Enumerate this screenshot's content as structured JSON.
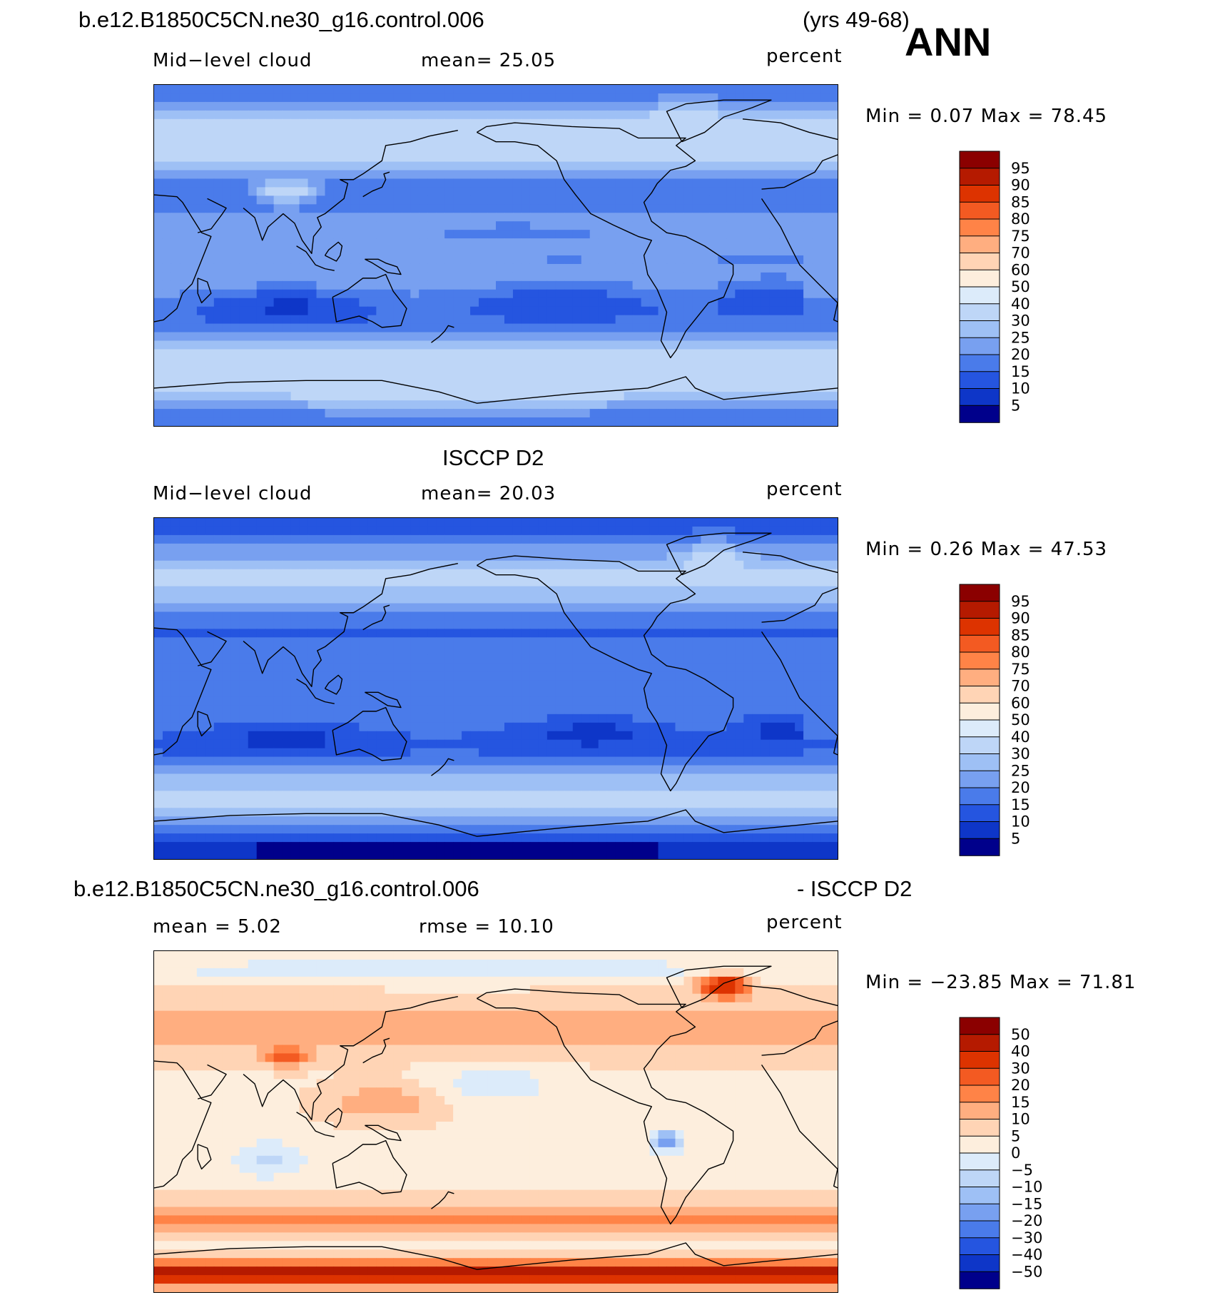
{
  "header": {
    "case_name": "b.e12.B1850C5CN.ne30_g16.control.006",
    "years": "(yrs 49-68)",
    "season": "ANN"
  },
  "panels": [
    {
      "title": "",
      "left_label": "Mid−level cloud",
      "center_label": "mean=   25.05",
      "right_label": "percent",
      "minmax": "Min =    0.07 Max =   78.45",
      "field": "model",
      "colorbar": {
        "levels": [
          "95",
          "90",
          "85",
          "80",
          "75",
          "70",
          "60",
          "50",
          "40",
          "30",
          "25",
          "20",
          "15",
          "10",
          "5"
        ],
        "colors": [
          "#8b0000",
          "#b51a00",
          "#dd3300",
          "#f35a22",
          "#ff8347",
          "#ffae80",
          "#ffd4b5",
          "#fdeedd",
          "#dcebfa",
          "#bed6f7",
          "#9ec0f5",
          "#78a0f0",
          "#4a7bea",
          "#2555e0",
          "#0e36c8",
          "#00008b"
        ]
      }
    },
    {
      "title": "ISCCP D2",
      "left_label": "Mid−level cloud",
      "center_label": "mean=   20.03",
      "right_label": "percent",
      "minmax": "Min =    0.26 Max =   47.53",
      "field": "obs",
      "colorbar": {
        "levels": [
          "95",
          "90",
          "85",
          "80",
          "75",
          "70",
          "60",
          "50",
          "40",
          "30",
          "25",
          "20",
          "15",
          "10",
          "5"
        ],
        "colors": [
          "#8b0000",
          "#b51a00",
          "#dd3300",
          "#f35a22",
          "#ff8347",
          "#ffae80",
          "#ffd4b5",
          "#fdeedd",
          "#dcebfa",
          "#bed6f7",
          "#9ec0f5",
          "#78a0f0",
          "#4a7bea",
          "#2555e0",
          "#0e36c8",
          "#00008b"
        ]
      }
    },
    {
      "title_left": "b.e12.B1850C5CN.ne30_g16.control.006",
      "title_right": "- ISCCP D2",
      "left_label": "mean =    5.02",
      "center_label": "rmse =    10.10",
      "right_label": "percent",
      "minmax": "Min = −23.85 Max =   71.81",
      "field": "diff",
      "colorbar": {
        "levels": [
          "50",
          "40",
          "30",
          "20",
          "15",
          "10",
          "5",
          "0",
          "−5",
          "−10",
          "−15",
          "−20",
          "−30",
          "−40",
          "−50"
        ],
        "colors": [
          "#8b0000",
          "#b51a00",
          "#dd3300",
          "#f35a22",
          "#ff8347",
          "#ffae80",
          "#ffd4b5",
          "#fdeedd",
          "#dcebfa",
          "#bed6f7",
          "#9ec0f5",
          "#78a0f0",
          "#4a7bea",
          "#2555e0",
          "#0e36c8",
          "#00008b"
        ]
      }
    }
  ]
}
